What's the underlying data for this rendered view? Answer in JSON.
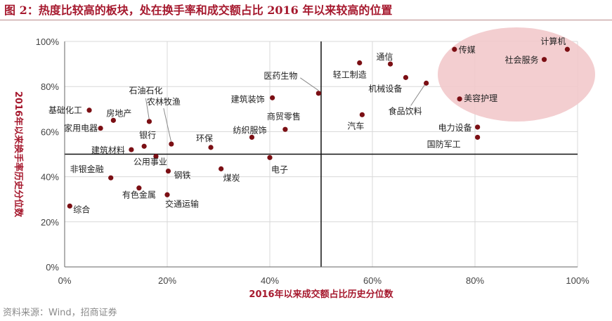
{
  "figure": {
    "title": "图 2：热度比较高的板块，处在换手率和成交额占比 2016 年以来较高的位置",
    "source": "资料来源：Wind，招商证券"
  },
  "colors": {
    "title": "#a6192e",
    "point": "#7b0f14",
    "highlight_fill": "#f2c9cb",
    "axis": "#111111",
    "grid": "#d8d8d8",
    "axis_title": "#a6192e"
  },
  "chart_data": {
    "type": "scatter",
    "xlabel": "2016年以来成交额占比历史分位数",
    "ylabel": "2016年以来换手率历史分位数",
    "xlim": [
      0,
      100
    ],
    "ylim": [
      0,
      100
    ],
    "x_ticks": [
      "0%",
      "20%",
      "40%",
      "60%",
      "80%",
      "100%"
    ],
    "y_ticks": [
      "0%",
      "20%",
      "40%",
      "60%",
      "80%",
      "100%"
    ],
    "reference_lines": {
      "x": 50,
      "y": 50
    },
    "highlight_region": "upper-right",
    "points": [
      {
        "name": "计算机",
        "x": 98,
        "y": 96.5
      },
      {
        "name": "传媒",
        "x": 76,
        "y": 96.5
      },
      {
        "name": "社会服务",
        "x": 93.5,
        "y": 92
      },
      {
        "name": "通信",
        "x": 63.5,
        "y": 90
      },
      {
        "name": "轻工制造",
        "x": 57.5,
        "y": 90.5
      },
      {
        "name": "机械设备",
        "x": 66.5,
        "y": 84
      },
      {
        "name": "食品饮料",
        "x": 70.5,
        "y": 81.5
      },
      {
        "name": "美容护理",
        "x": 77,
        "y": 74.5
      },
      {
        "name": "汽车",
        "x": 58,
        "y": 67.5
      },
      {
        "name": "电力设备",
        "x": 80.5,
        "y": 62
      },
      {
        "name": "国防军工",
        "x": 80.5,
        "y": 57.5
      },
      {
        "name": "医药生物",
        "x": 49.5,
        "y": 77
      },
      {
        "name": "建筑装饰",
        "x": 40.5,
        "y": 75
      },
      {
        "name": "商贸零售",
        "x": 43,
        "y": 61
      },
      {
        "name": "纺织服饰",
        "x": 36.5,
        "y": 57.5
      },
      {
        "name": "电子",
        "x": 40,
        "y": 48.5
      },
      {
        "name": "石油石化",
        "x": 16.5,
        "y": 64.5
      },
      {
        "name": "农林牧渔",
        "x": 20.8,
        "y": 54.5
      },
      {
        "name": "环保",
        "x": 28.5,
        "y": 53
      },
      {
        "name": "基础化工",
        "x": 4.8,
        "y": 69.5
      },
      {
        "name": "房地产",
        "x": 9.5,
        "y": 65
      },
      {
        "name": "家用电器",
        "x": 7,
        "y": 61.5
      },
      {
        "name": "建筑材料",
        "x": 13,
        "y": 52
      },
      {
        "name": "银行",
        "x": 15.5,
        "y": 53.5
      },
      {
        "name": "公用事业",
        "x": 17.8,
        "y": 49
      },
      {
        "name": "钢铁",
        "x": 20.2,
        "y": 42.5
      },
      {
        "name": "煤炭",
        "x": 30.5,
        "y": 43.5
      },
      {
        "name": "非银金融",
        "x": 9,
        "y": 39.5
      },
      {
        "name": "有色金属",
        "x": 14.5,
        "y": 35
      },
      {
        "name": "交通运输",
        "x": 20,
        "y": 32
      },
      {
        "name": "综合",
        "x": 1,
        "y": 27
      }
    ]
  }
}
